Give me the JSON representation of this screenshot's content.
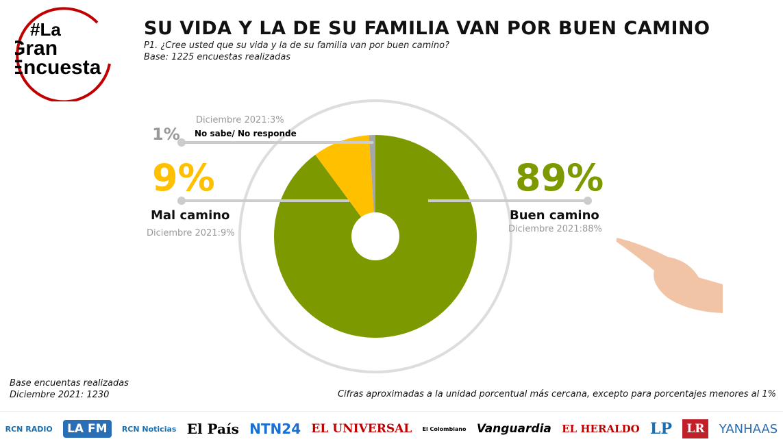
{
  "logo_text": "#La Gran Encuesta",
  "title": "SU VIDA Y LA DE SU FAMILIA VAN POR BUEN CAMINO",
  "question": "P1. ¿Cree usted que su vida y la de su familia van por buen camino?",
  "base": "Base: 1225  encuestas realizadas",
  "chart_data": {
    "type": "pie",
    "donut": true,
    "slices": [
      {
        "label": "Buen camino",
        "value": 89,
        "display": "89%",
        "previous": "Diciembre 2021:88%",
        "color": "#7c9a00"
      },
      {
        "label": "Mal camino",
        "value": 9,
        "display": "9%",
        "previous": "Diciembre 2021:9%",
        "color": "#ffc000"
      },
      {
        "label": "No sabe/ No responde",
        "value": 1,
        "display": "1%",
        "previous": "Diciembre 2021:3%",
        "color": "#a6a6a6"
      }
    ]
  },
  "footer": {
    "base_line1": "Base encuentas realizadas",
    "base_line2": "Diciembre 2021: 1230",
    "note": "Cifras aproximadas a la unidad porcentual más cercana, excepto para porcentajes menores al 1%"
  },
  "media_logos": [
    "RCN RADIO",
    "LA FM",
    "RCN Noticias",
    "El País",
    "NTN24",
    "EL UNIVERSAL",
    "El Colombiano",
    "Vanguardia",
    "EL HERALDO",
    "LP",
    "LR",
    "YANHAAS"
  ]
}
